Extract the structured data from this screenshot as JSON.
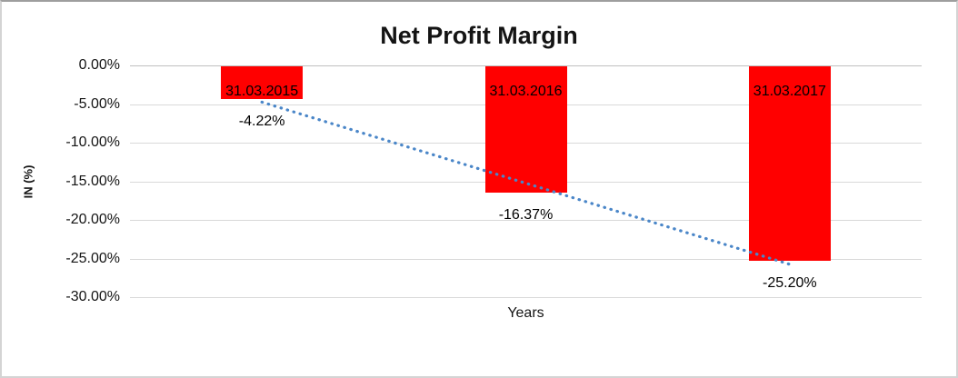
{
  "chart_data": {
    "type": "bar",
    "title": "Net Profit Margin",
    "xlabel": "Years",
    "ylabel": "IN (%)",
    "categories": [
      "31.03.2015",
      "31.03.2016",
      "31.03.2017"
    ],
    "values": [
      -4.22,
      -16.37,
      -25.2
    ],
    "data_labels": [
      "-4.22%",
      "-16.37%",
      "-25.20%"
    ],
    "ylim": [
      -30,
      0
    ],
    "ytick_step": 5,
    "ytick_labels": [
      "0.00%",
      "-5.00%",
      "-10.00%",
      "-15.00%",
      "-20.00%",
      "-25.00%",
      "-30.00%"
    ],
    "grid": true,
    "legend": false,
    "bar_color": "#ff0000",
    "gridline_color": "#d9d9d9",
    "trendline": {
      "type": "linear",
      "style": "dotted",
      "color": "#4a86c8",
      "start_pct": -4.75,
      "end_pct": -25.75
    }
  }
}
